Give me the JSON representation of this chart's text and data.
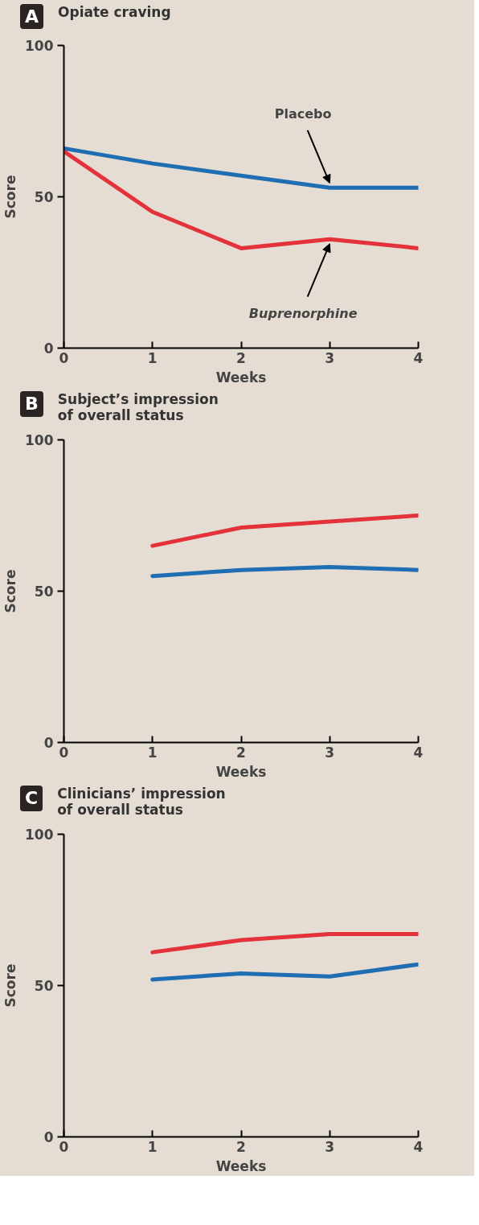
{
  "chart_data": [
    {
      "type": "line",
      "title": "Opiate craving",
      "xlabel": "Weeks",
      "ylabel": "Score",
      "x": [
        0,
        1,
        2,
        3,
        4
      ],
      "xlim": [
        0,
        4
      ],
      "ylim": [
        0,
        100
      ],
      "xticks": [
        0,
        1,
        2,
        3,
        4
      ],
      "yticks": [
        0,
        50,
        100
      ],
      "grid": false,
      "legend": false,
      "series": [
        {
          "name": "Placebo",
          "color": "#1f6db3",
          "values": [
            66,
            61,
            57,
            53,
            53
          ]
        },
        {
          "name": "Buprenorphine",
          "color": "#e3323a",
          "values": [
            65,
            45,
            33,
            36,
            33
          ]
        }
      ],
      "annotations": [
        "A"
      ]
    },
    {
      "type": "line",
      "title": "Subject’s impression\nof overall status",
      "xlabel": "Weeks",
      "ylabel": "Score",
      "xlim": [
        0,
        4
      ],
      "ylim": [
        0,
        100
      ],
      "xticks": [
        0,
        1,
        2,
        3,
        4
      ],
      "yticks": [
        0,
        50,
        100
      ],
      "grid": false,
      "legend": false,
      "series": [
        {
          "color": "#1f6db3",
          "x": [
            1,
            2,
            3,
            4
          ],
          "values": [
            55,
            57,
            58,
            57
          ]
        },
        {
          "color": "#e3323a",
          "x": [
            1,
            2,
            3,
            4
          ],
          "values": [
            65,
            71,
            73,
            75
          ]
        }
      ],
      "annotations": [
        "B"
      ]
    },
    {
      "type": "line",
      "title": "Clinicians’ impression\nof overall status",
      "xlabel": "Weeks",
      "ylabel": "Score",
      "xlim": [
        0,
        4
      ],
      "ylim": [
        0,
        100
      ],
      "xticks": [
        0,
        1,
        2,
        3,
        4
      ],
      "yticks": [
        0,
        50,
        100
      ],
      "grid": false,
      "legend": false,
      "series": [
        {
          "color": "#1f6db3",
          "x": [
            1,
            2,
            3,
            4
          ],
          "values": [
            52,
            54,
            53,
            57
          ]
        },
        {
          "color": "#e3323a",
          "x": [
            1,
            2,
            3,
            4
          ],
          "values": [
            61,
            65,
            67,
            67
          ]
        }
      ],
      "annotations": [
        "C"
      ]
    }
  ]
}
